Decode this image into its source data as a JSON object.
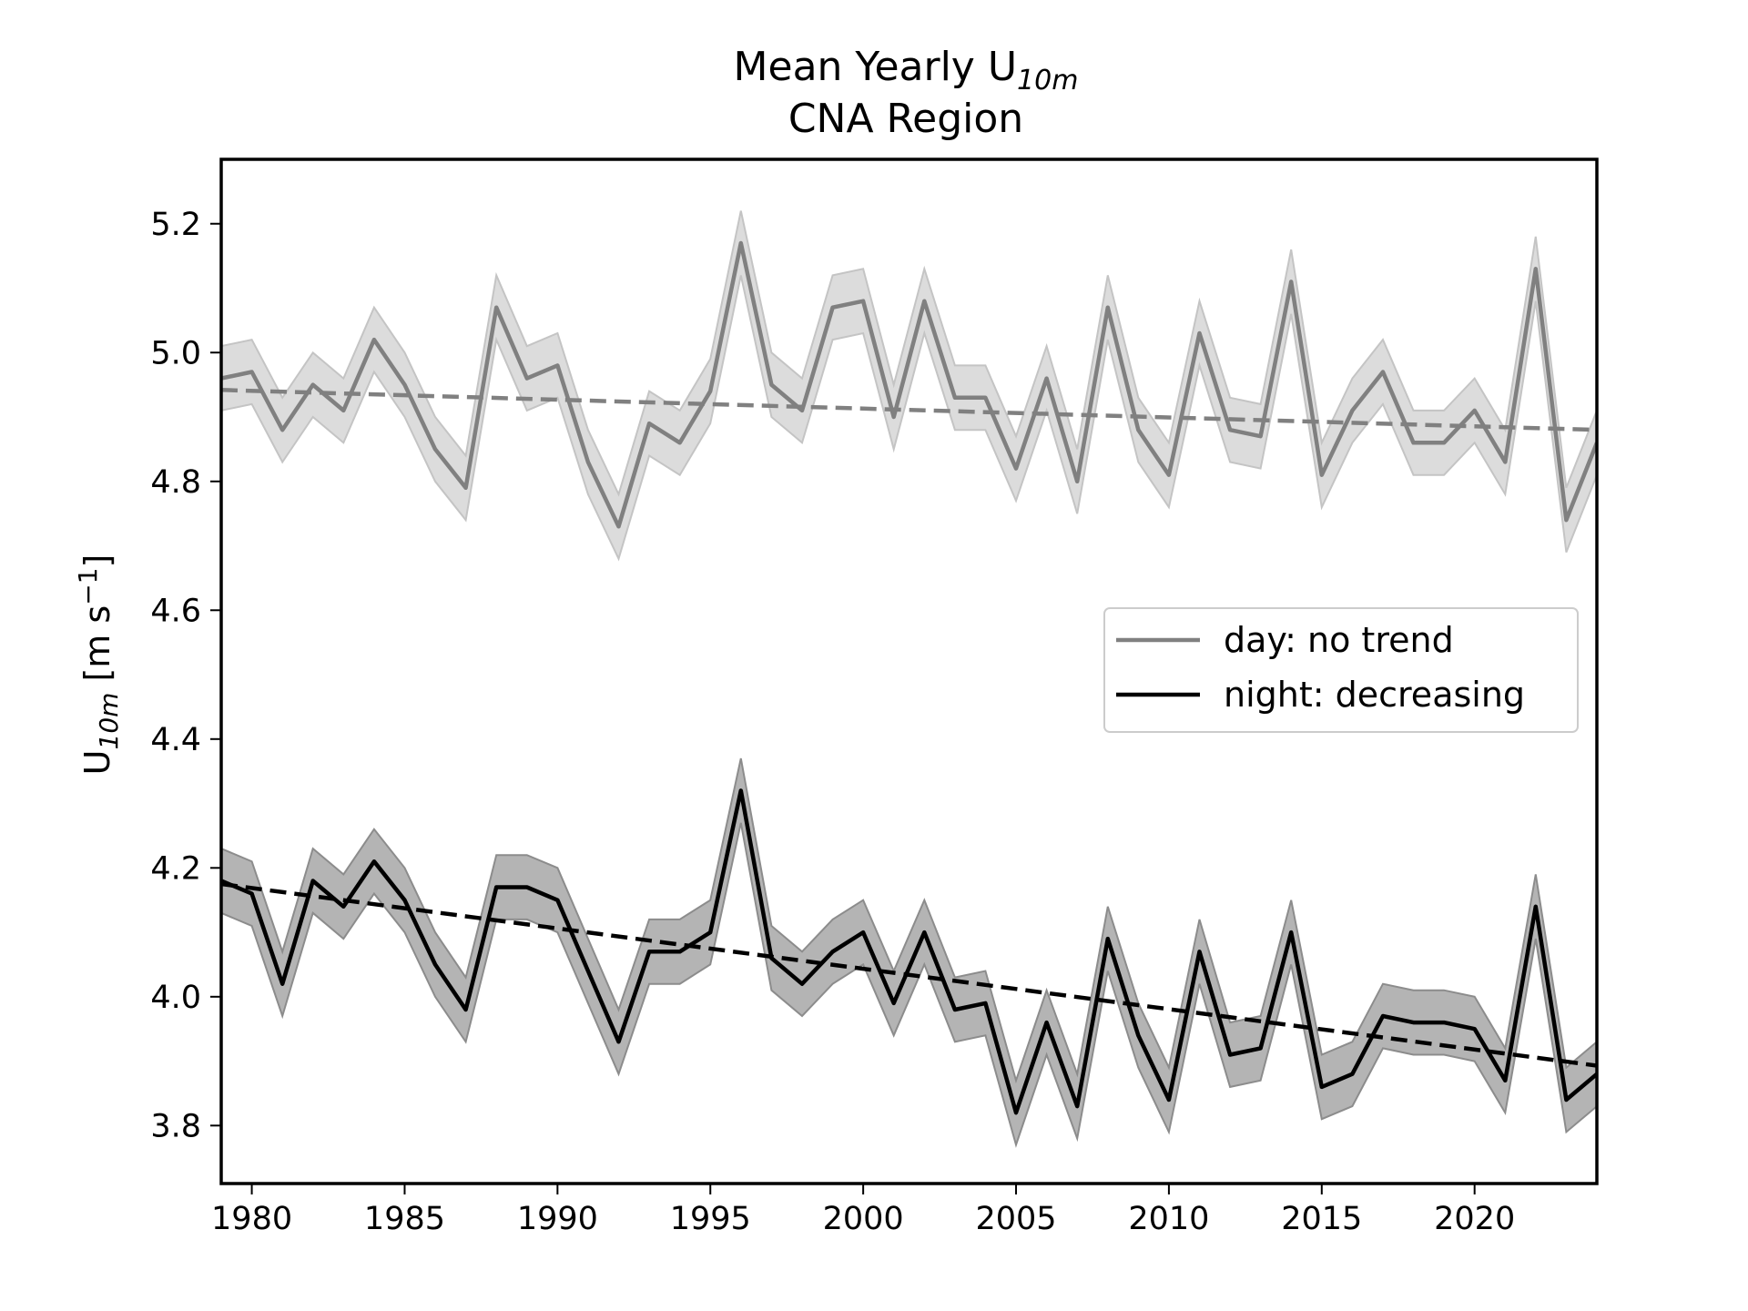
{
  "chart_data": {
    "type": "line",
    "title_line1": "Mean Yearly U",
    "title_sub": "10m",
    "title_line2": "CNA Region",
    "ylabel_main": "U",
    "ylabel_sub": "10m",
    "ylabel_units": " [m s",
    "ylabel_exp": "−1",
    "ylabel_close": "]",
    "xlim": [
      1979,
      2024
    ],
    "ylim": [
      3.71,
      5.3
    ],
    "xticks": [
      1980,
      1985,
      1990,
      1995,
      2000,
      2005,
      2010,
      2015,
      2020
    ],
    "yticks": [
      "3.8",
      "4.0",
      "4.2",
      "4.4",
      "4.6",
      "4.8",
      "5.0",
      "5.2"
    ],
    "legend_position": "center-right",
    "band_halfwidth": 0.05,
    "x": [
      1979,
      1980,
      1981,
      1982,
      1983,
      1984,
      1985,
      1986,
      1987,
      1988,
      1989,
      1990,
      1991,
      1992,
      1993,
      1994,
      1995,
      1996,
      1997,
      1998,
      1999,
      2000,
      2001,
      2002,
      2003,
      2004,
      2005,
      2006,
      2007,
      2008,
      2009,
      2010,
      2011,
      2012,
      2013,
      2014,
      2015,
      2016,
      2017,
      2018,
      2019,
      2020,
      2021,
      2022,
      2023,
      2024
    ],
    "series": [
      {
        "name": "day: no trend",
        "color": "#808080",
        "band_color": "#dcdcdc",
        "band_edge": "#c4c4c4",
        "values": [
          4.96,
          4.97,
          4.88,
          4.95,
          4.91,
          5.02,
          4.95,
          4.85,
          4.79,
          5.07,
          4.96,
          4.98,
          4.83,
          4.73,
          4.89,
          4.86,
          4.94,
          5.17,
          4.95,
          4.91,
          5.07,
          5.08,
          4.9,
          5.08,
          4.93,
          4.93,
          4.82,
          4.96,
          4.8,
          5.07,
          4.88,
          4.81,
          5.03,
          4.88,
          4.87,
          5.11,
          4.81,
          4.91,
          4.97,
          4.86,
          4.86,
          4.91,
          4.83,
          5.13,
          4.74,
          4.86
        ],
        "trend": [
          4.942,
          4.88
        ]
      },
      {
        "name": "night: decreasing",
        "color": "#000000",
        "band_color": "#b4b4b4",
        "band_edge": "#8c8c8c",
        "values": [
          4.18,
          4.16,
          4.02,
          4.18,
          4.14,
          4.21,
          4.15,
          4.05,
          3.98,
          4.17,
          4.17,
          4.15,
          4.04,
          3.93,
          4.07,
          4.07,
          4.1,
          4.32,
          4.06,
          4.02,
          4.07,
          4.1,
          3.99,
          4.1,
          3.98,
          3.99,
          3.82,
          3.96,
          3.83,
          4.09,
          3.94,
          3.84,
          4.07,
          3.91,
          3.92,
          4.1,
          3.86,
          3.88,
          3.97,
          3.96,
          3.96,
          3.95,
          3.87,
          4.14,
          3.84,
          3.88
        ],
        "trend": [
          4.175,
          3.893
        ]
      }
    ]
  }
}
